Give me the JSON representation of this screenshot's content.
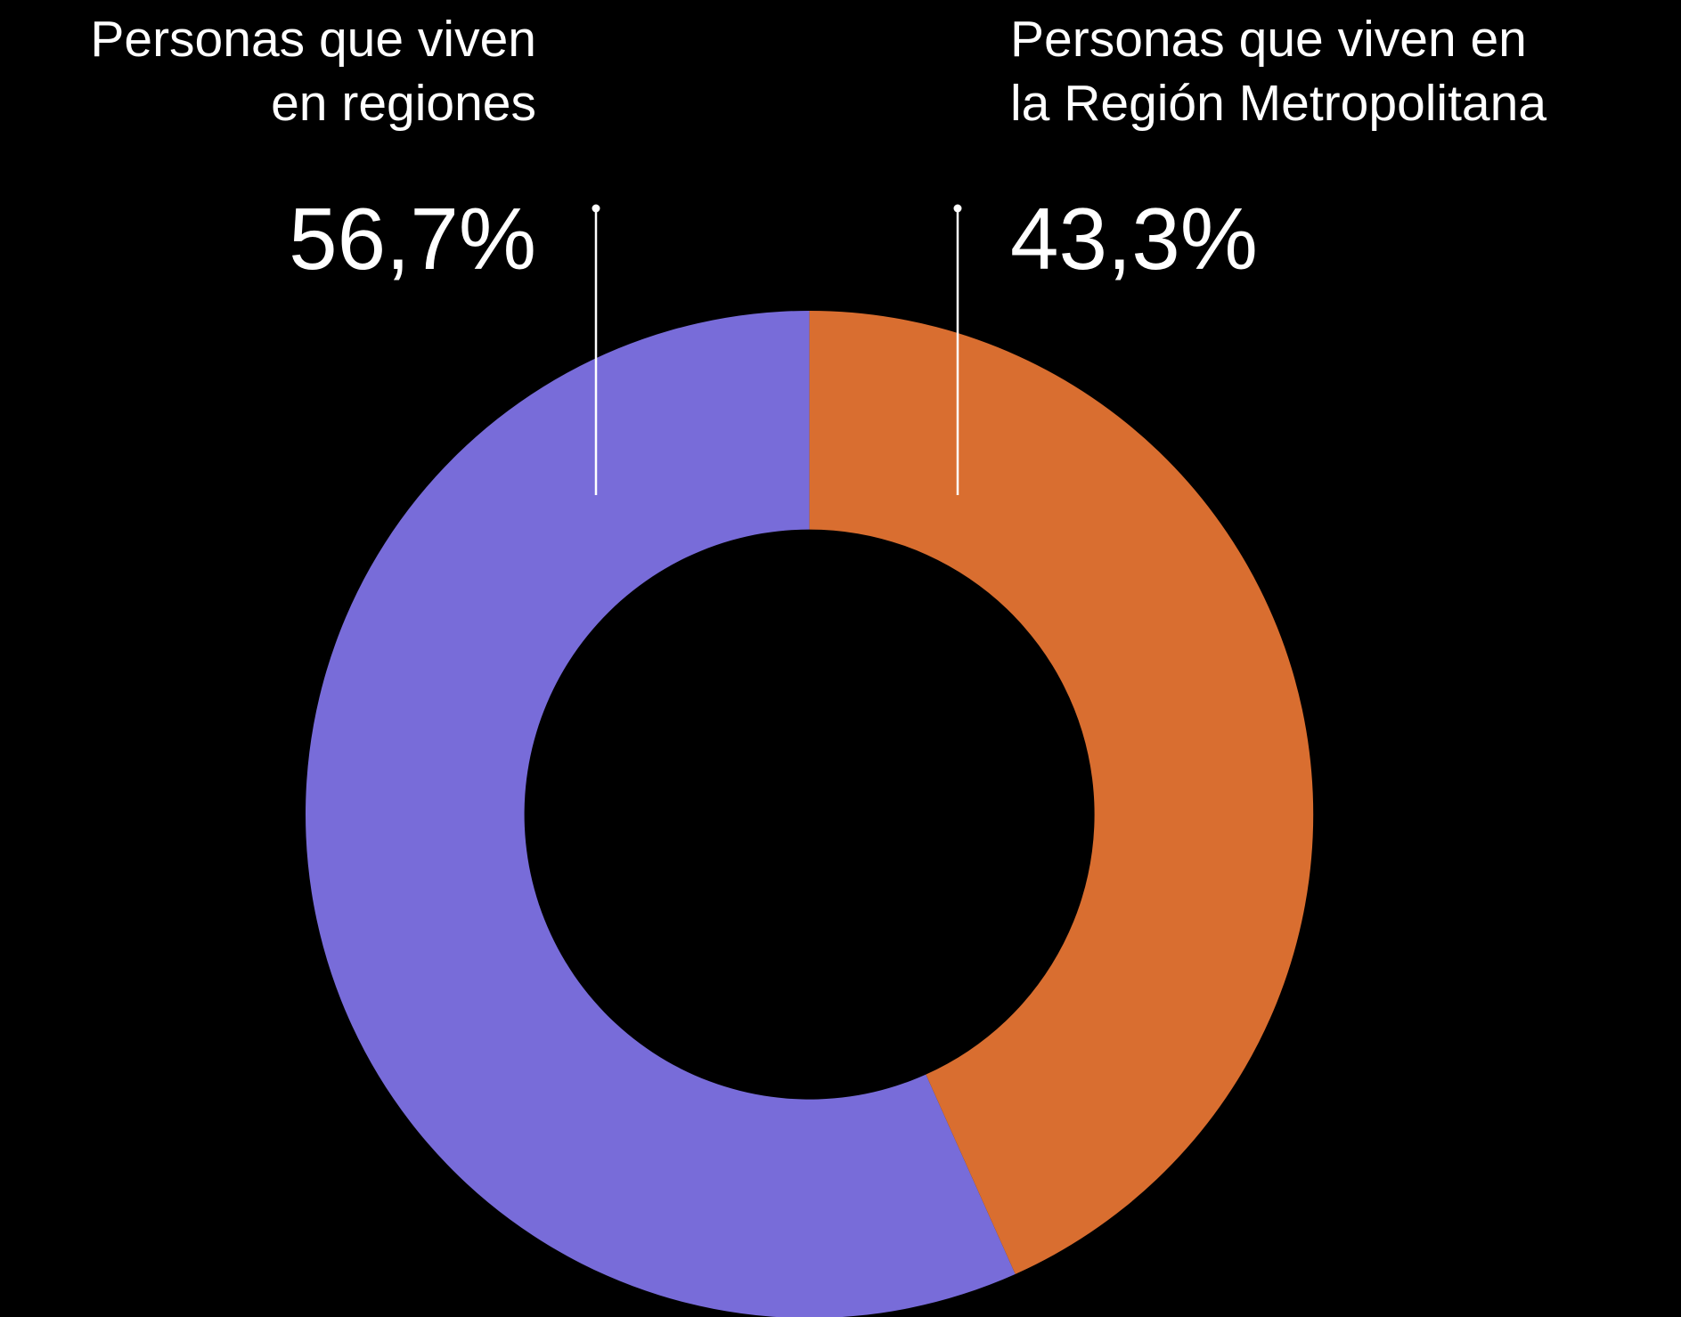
{
  "chart_data": {
    "type": "pie",
    "categories": [
      "Personas que viven\nen regiones",
      "Personas que viven en\nla Región Metropolitana"
    ],
    "values": [
      56.7,
      43.3
    ],
    "value_labels": [
      "56,7%",
      "43,3%"
    ],
    "colors": [
      "#786cd9",
      "#d96e30"
    ],
    "donut": true
  }
}
